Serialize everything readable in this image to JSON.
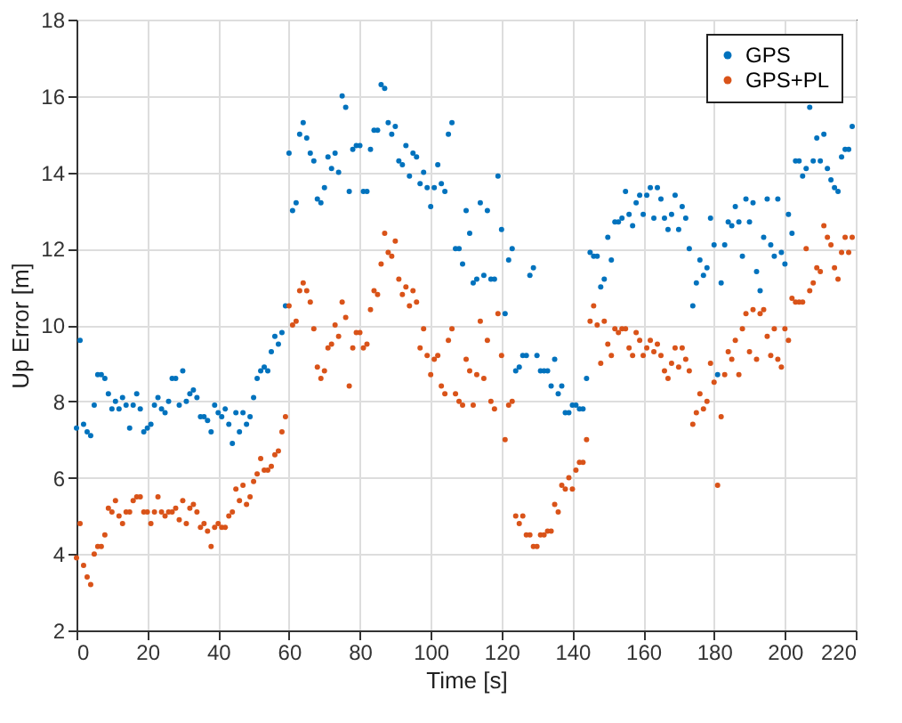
{
  "chart_data": {
    "type": "scatter",
    "xlabel": "Time [s]",
    "ylabel": "Up Error [m]",
    "xlim": [
      0,
      220
    ],
    "xticks": [
      0,
      20,
      40,
      60,
      80,
      100,
      120,
      140,
      160,
      180,
      200,
      220
    ],
    "ylim": [
      2,
      18
    ],
    "yticks": [
      2,
      4,
      6,
      8,
      10,
      12,
      14,
      16,
      18
    ],
    "grid": true,
    "legend": "top right",
    "marker": "circle",
    "series": [
      {
        "name": "GPS",
        "color": "#0072bd",
        "x": [
          0,
          1,
          2,
          3,
          4,
          5,
          6,
          7,
          8,
          9,
          10,
          11,
          12,
          13,
          14,
          15,
          16,
          17,
          18,
          19,
          20,
          21,
          22,
          23,
          24,
          25,
          26,
          27,
          28,
          29,
          30,
          31,
          32,
          33,
          34,
          35,
          36,
          37,
          38,
          39,
          40,
          41,
          42,
          43,
          44,
          45,
          46,
          47,
          48,
          49,
          50,
          51,
          52,
          53,
          54,
          55,
          56,
          57,
          58,
          59,
          60,
          61,
          62,
          63,
          64,
          65,
          66,
          67,
          68,
          69,
          70,
          71,
          72,
          73,
          74,
          75,
          76,
          77,
          78,
          79,
          80,
          81,
          82,
          83,
          84,
          85,
          86,
          87,
          88,
          89,
          90,
          91,
          92,
          93,
          94,
          95,
          96,
          97,
          98,
          99,
          100,
          101,
          102,
          103,
          104,
          105,
          106,
          107,
          108,
          109,
          110,
          111,
          112,
          113,
          114,
          115,
          116,
          117,
          118,
          119,
          120,
          121,
          122,
          123,
          124,
          125,
          126,
          127,
          128,
          129,
          130,
          131,
          132,
          133,
          134,
          135,
          136,
          137,
          138,
          139,
          140,
          141,
          142,
          143,
          144,
          145,
          146,
          147,
          148,
          149,
          150,
          151,
          152,
          153,
          154,
          155,
          156,
          157,
          158,
          159,
          160,
          161,
          162,
          163,
          164,
          165,
          166,
          167,
          168,
          169,
          170,
          171,
          172,
          173,
          174,
          175,
          176,
          177,
          178,
          179,
          180,
          181,
          182,
          183,
          184,
          185,
          186,
          187,
          188,
          189,
          190,
          191,
          192,
          193,
          194,
          195,
          196,
          197,
          198,
          199,
          200,
          201,
          202,
          203,
          204,
          205,
          206,
          207,
          208,
          209,
          210,
          211,
          212,
          213,
          214,
          215,
          216,
          217,
          218,
          219
        ],
        "values": [
          7.3,
          9.6,
          7.4,
          7.2,
          7.1,
          7.9,
          8.7,
          8.7,
          8.6,
          8.2,
          7.8,
          8.0,
          7.8,
          8.1,
          7.9,
          7.3,
          7.9,
          8.2,
          7.8,
          7.2,
          7.3,
          7.4,
          7.9,
          8.1,
          7.8,
          7.7,
          8.0,
          8.6,
          8.6,
          7.9,
          8.8,
          8.0,
          8.2,
          8.3,
          8.1,
          7.6,
          7.6,
          7.5,
          7.2,
          7.9,
          7.7,
          7.6,
          7.8,
          7.4,
          6.9,
          7.7,
          7.2,
          7.7,
          7.4,
          7.6,
          8.1,
          8.6,
          8.8,
          8.9,
          8.8,
          9.3,
          9.7,
          9.5,
          9.8,
          10.5,
          14.5,
          13.0,
          13.2,
          15.0,
          15.3,
          14.9,
          14.5,
          14.3,
          13.3,
          13.2,
          13.6,
          14.4,
          14.1,
          14.5,
          14.0,
          16.0,
          15.7,
          13.5,
          14.6,
          14.7,
          14.7,
          13.5,
          13.5,
          14.6,
          15.1,
          15.1,
          16.3,
          16.2,
          15.3,
          15.0,
          15.2,
          14.3,
          14.2,
          14.7,
          13.9,
          14.5,
          14.4,
          13.7,
          14.0,
          13.6,
          13.1,
          13.6,
          14.2,
          13.7,
          13.5,
          15.0,
          15.3,
          12.0,
          12.0,
          11.6,
          13.0,
          12.4,
          11.1,
          11.2,
          13.2,
          11.3,
          13.0,
          11.2,
          11.2,
          13.9,
          12.5,
          10.3,
          11.7,
          12.0,
          8.8,
          8.9,
          9.2,
          9.2,
          11.3,
          11.5,
          9.2,
          8.8,
          8.8,
          8.8,
          8.4,
          9.1,
          8.2,
          8.4,
          7.7,
          7.7,
          7.9,
          7.9,
          7.8,
          7.8,
          8.6,
          11.9,
          11.8,
          11.8,
          11.0,
          11.2,
          12.3,
          11.7,
          12.7,
          12.7,
          12.8,
          13.5,
          12.9,
          12.6,
          13.2,
          13.4,
          12.9,
          13.4,
          13.6,
          12.8,
          13.6,
          13.3,
          12.8,
          12.5,
          12.9,
          13.4,
          12.5,
          13.1,
          12.8,
          12.0,
          10.5,
          11.1,
          11.7,
          11.3,
          11.5,
          12.8,
          12.1,
          8.7,
          11.1,
          12.1,
          12.7,
          12.6,
          13.1,
          12.7,
          11.8,
          13.3,
          12.7,
          13.2,
          11.4,
          10.9,
          12.3,
          13.3,
          12.1,
          11.8,
          13.3,
          11.9,
          11.6,
          12.9,
          12.4,
          14.3,
          14.3,
          13.9,
          14.1,
          15.7,
          14.3,
          14.9,
          14.3,
          15.0,
          14.1,
          13.8,
          13.6,
          13.5,
          14.4,
          14.6,
          14.6,
          15.2
        ]
      },
      {
        "name": "GPS+PL",
        "color": "#d95319",
        "x": [
          0,
          1,
          2,
          3,
          4,
          5,
          6,
          7,
          8,
          9,
          10,
          11,
          12,
          13,
          14,
          15,
          16,
          17,
          18,
          19,
          20,
          21,
          22,
          23,
          24,
          25,
          26,
          27,
          28,
          29,
          30,
          31,
          32,
          33,
          34,
          35,
          36,
          37,
          38,
          39,
          40,
          41,
          42,
          43,
          44,
          45,
          46,
          47,
          48,
          49,
          50,
          51,
          52,
          53,
          54,
          55,
          56,
          57,
          58,
          59,
          60,
          61,
          62,
          63,
          64,
          65,
          66,
          67,
          68,
          69,
          70,
          71,
          72,
          73,
          74,
          75,
          76,
          77,
          78,
          79,
          80,
          81,
          82,
          83,
          84,
          85,
          86,
          87,
          88,
          89,
          90,
          91,
          92,
          93,
          94,
          95,
          96,
          97,
          98,
          99,
          100,
          101,
          102,
          103,
          104,
          105,
          106,
          107,
          108,
          109,
          110,
          111,
          112,
          113,
          114,
          115,
          116,
          117,
          118,
          119,
          120,
          121,
          122,
          123,
          124,
          125,
          126,
          127,
          128,
          129,
          130,
          131,
          132,
          133,
          134,
          135,
          136,
          137,
          138,
          139,
          140,
          141,
          142,
          143,
          144,
          145,
          146,
          147,
          148,
          149,
          150,
          151,
          152,
          153,
          154,
          155,
          156,
          157,
          158,
          159,
          160,
          161,
          162,
          163,
          164,
          165,
          166,
          167,
          168,
          169,
          170,
          171,
          172,
          173,
          174,
          175,
          176,
          177,
          178,
          179,
          180,
          181,
          182,
          183,
          184,
          185,
          186,
          187,
          188,
          189,
          190,
          191,
          192,
          193,
          194,
          195,
          196,
          197,
          198,
          199,
          200,
          201,
          202,
          203,
          204,
          205,
          206,
          207,
          208,
          209,
          210,
          211,
          212,
          213,
          214,
          215,
          216,
          217,
          218,
          219
        ],
        "values": [
          3.9,
          4.8,
          3.7,
          3.4,
          3.2,
          4.0,
          4.2,
          4.2,
          4.5,
          5.2,
          5.1,
          5.4,
          5.0,
          4.8,
          5.1,
          5.1,
          5.4,
          5.5,
          5.5,
          5.1,
          5.1,
          4.8,
          5.1,
          5.5,
          5.1,
          5.0,
          5.1,
          5.1,
          5.2,
          4.9,
          5.4,
          4.8,
          5.2,
          5.3,
          5.1,
          4.7,
          4.8,
          4.6,
          4.2,
          4.7,
          4.8,
          4.7,
          4.7,
          5.0,
          5.1,
          5.7,
          5.4,
          5.8,
          5.3,
          5.5,
          5.9,
          6.1,
          6.5,
          6.2,
          6.2,
          6.3,
          6.6,
          6.7,
          7.2,
          7.6,
          10.5,
          10.0,
          10.1,
          10.9,
          11.1,
          10.9,
          10.6,
          9.9,
          8.9,
          8.6,
          8.8,
          9.4,
          9.5,
          10.0,
          9.7,
          10.6,
          10.2,
          8.4,
          9.4,
          9.8,
          9.8,
          9.4,
          9.5,
          10.4,
          10.9,
          10.8,
          11.6,
          12.4,
          11.9,
          11.8,
          12.2,
          11.2,
          10.8,
          11.0,
          10.5,
          10.9,
          10.6,
          9.4,
          9.9,
          9.2,
          8.7,
          9.1,
          9.2,
          8.4,
          8.2,
          9.6,
          9.9,
          8.2,
          8.0,
          7.9,
          9.1,
          8.8,
          7.9,
          8.7,
          10.1,
          8.6,
          9.6,
          8.0,
          7.8,
          10.3,
          9.2,
          7.0,
          7.9,
          8.0,
          5.0,
          4.8,
          5.0,
          4.5,
          4.5,
          4.2,
          4.2,
          4.5,
          4.5,
          4.6,
          4.6,
          5.3,
          5.1,
          5.8,
          5.7,
          6.0,
          5.7,
          6.2,
          6.4,
          6.4,
          7.0,
          10.1,
          10.5,
          10.0,
          9.0,
          10.1,
          9.5,
          9.2,
          9.9,
          9.8,
          9.9,
          9.9,
          9.4,
          9.2,
          9.8,
          9.6,
          9.2,
          9.4,
          9.6,
          9.3,
          9.5,
          9.2,
          8.8,
          8.6,
          9.0,
          9.4,
          8.9,
          9.4,
          9.1,
          8.8,
          7.4,
          7.7,
          8.2,
          7.8,
          8.0,
          9.0,
          8.5,
          5.8,
          7.6,
          8.7,
          9.3,
          9.1,
          9.6,
          8.7,
          9.9,
          10.3,
          9.3,
          10.4,
          9.1,
          10.3,
          10.4,
          9.7,
          9.2,
          9.9,
          9.1,
          8.9,
          9.9,
          9.6,
          10.7,
          10.6,
          10.6,
          10.6,
          12.0,
          10.9,
          11.1,
          11.5,
          11.4,
          12.6,
          12.3,
          12.1,
          11.5,
          11.2,
          11.9,
          12.3,
          11.9,
          12.3
        ]
      }
    ]
  }
}
